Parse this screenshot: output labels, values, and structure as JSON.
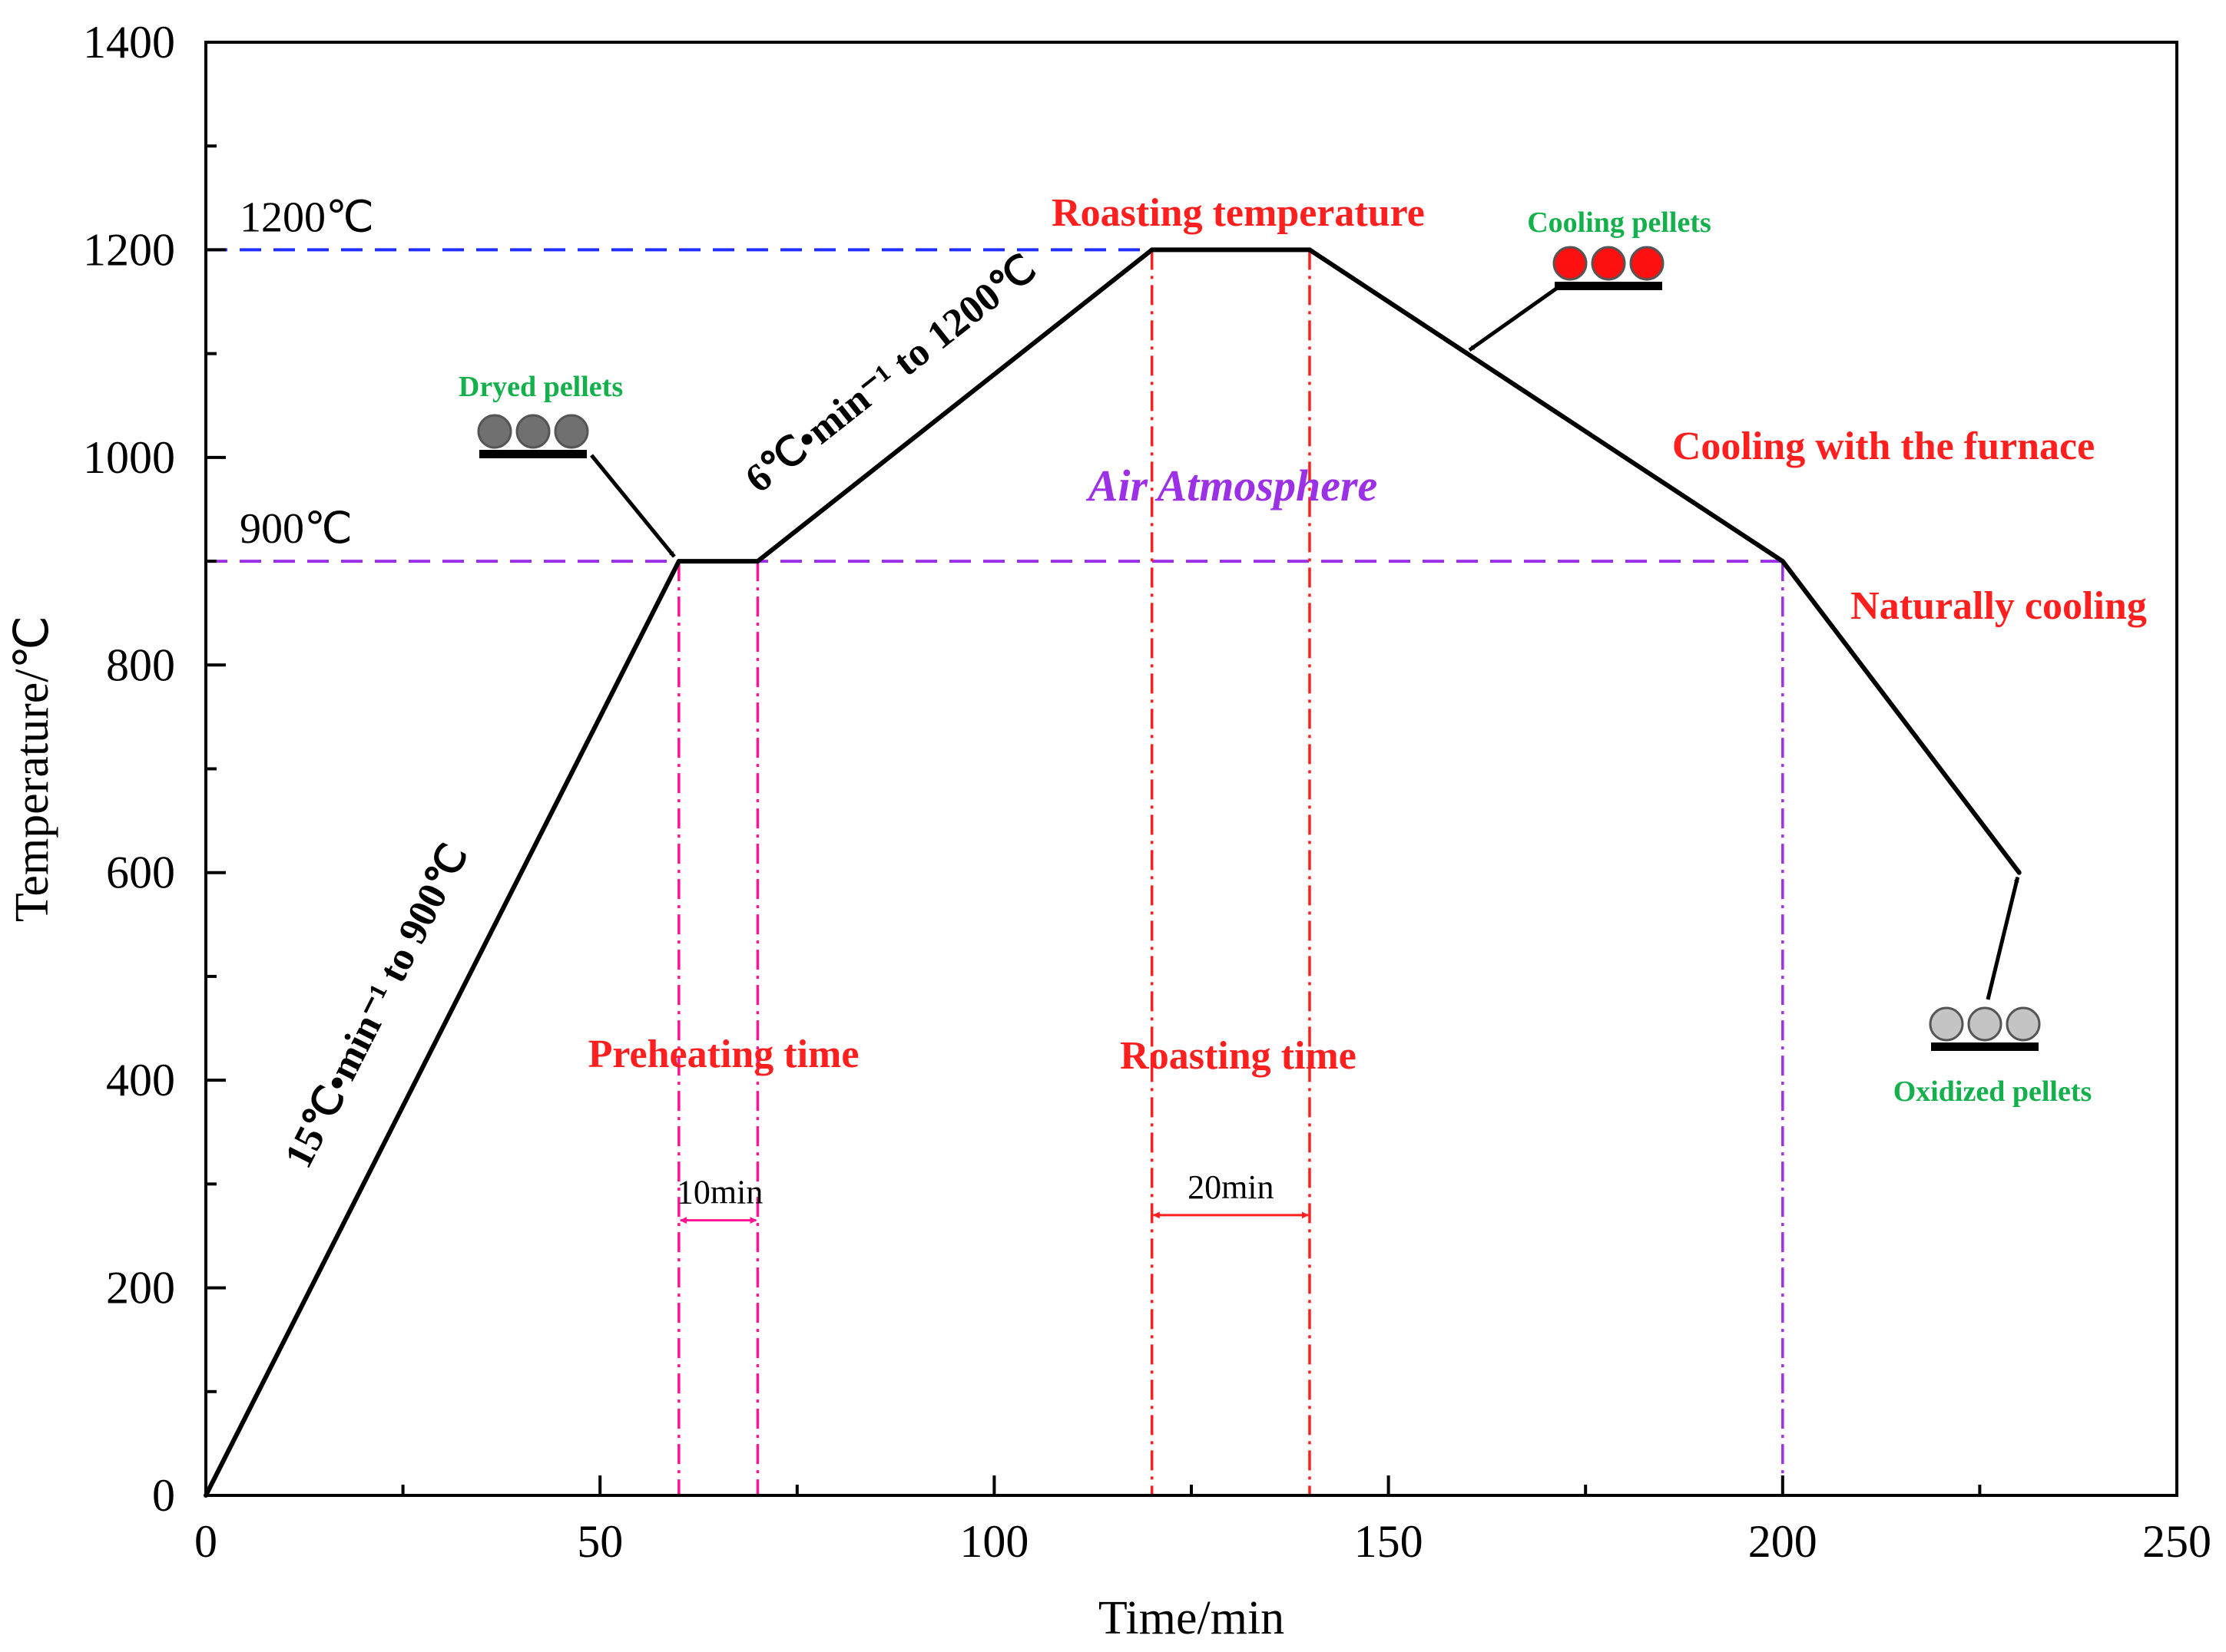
{
  "chart_data": {
    "type": "line",
    "title": "",
    "xlabel": "Time/min",
    "ylabel": "Temperature/℃",
    "xlim": [
      0,
      250
    ],
    "ylim": [
      0,
      1400
    ],
    "x_ticks": [
      "0",
      "50",
      "100",
      "150",
      "200",
      "250"
    ],
    "y_ticks": [
      "0",
      "200",
      "400",
      "600",
      "800",
      "1000",
      "1200",
      "1400"
    ],
    "grid": false,
    "series": [
      {
        "name": "Temperature profile",
        "color": "#000000",
        "x": [
          0,
          60,
          70,
          120,
          140,
          200,
          230
        ],
        "y": [
          0,
          900,
          900,
          1200,
          1200,
          900,
          600
        ]
      }
    ],
    "reference_lines": {
      "h1200": {
        "label": "1200℃",
        "value": 1200,
        "x_end": 120,
        "color": "#1f2fff"
      },
      "h900": {
        "label": "900℃",
        "value": 900,
        "x_end": 200,
        "color": "#9b30e6"
      }
    },
    "vertical_markers": [
      {
        "x": 60,
        "color": "#ff1493"
      },
      {
        "x": 70,
        "color": "#ff1493"
      },
      {
        "x": 120,
        "color": "#ff1f1f"
      },
      {
        "x": 140,
        "color": "#ff1f1f"
      },
      {
        "x": 200,
        "color": "#9b30e6"
      }
    ],
    "durations": {
      "preheat": {
        "label": "10min",
        "x0": 60,
        "x1": 70,
        "y": 265,
        "color": "#ff1493"
      },
      "roast": {
        "label": "20min",
        "x0": 120,
        "x1": 140,
        "y": 270,
        "color": "#ff1f1f"
      }
    },
    "annotations": {
      "rate1": "15℃•min⁻¹ to 900℃",
      "rate2": "6℃•min⁻¹ to 1200℃",
      "air": "Air Atmosphere",
      "preheating_time": "Preheating time",
      "roasting_time": "Roasting time",
      "roasting_temperature": "Roasting temperature",
      "cooling_furnace": "Cooling with the furnace",
      "naturally_cooling": "Naturally cooling",
      "dryed_pellets": "Dryed pellets",
      "cooling_pellets": "Cooling pellets",
      "oxidized_pellets": "Oxidized pellets"
    },
    "pellet_colors": {
      "dryed": "#707070",
      "cooling": "#ff1010",
      "oxidized": "#c4c4c4"
    }
  }
}
